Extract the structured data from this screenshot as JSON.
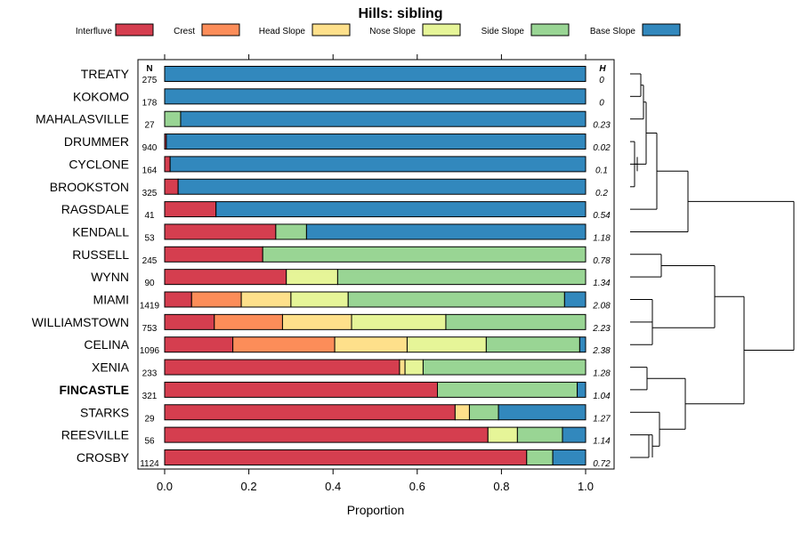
{
  "chart_data": {
    "type": "bar",
    "orientation": "horizontal",
    "stacked": true,
    "title": "Hills: sibling",
    "xlabel": "Proportion",
    "ylabel": "",
    "xlim": [
      0,
      1
    ],
    "x_ticks": [
      "0.0",
      "0.2",
      "0.4",
      "0.6",
      "0.8",
      "1.0"
    ],
    "n_header": "N",
    "h_header": "H",
    "legend": [
      {
        "name": "Interfluve",
        "color": "#d53e4f"
      },
      {
        "name": "Crest",
        "color": "#fc8d59"
      },
      {
        "name": "Head Slope",
        "color": "#fee08b"
      },
      {
        "name": "Nose Slope",
        "color": "#e6f598"
      },
      {
        "name": "Side Slope",
        "color": "#99d594"
      },
      {
        "name": "Base Slope",
        "color": "#3288bd"
      }
    ],
    "highlight": "FINCASTLE",
    "categories": [
      "TREATY",
      "KOKOMO",
      "MAHALASVILLE",
      "DRUMMER",
      "CYCLONE",
      "BROOKSTON",
      "RAGSDALE",
      "KENDALL",
      "RUSSELL",
      "WYNN",
      "MIAMI",
      "WILLIAMSTOWN",
      "CELINA",
      "XENIA",
      "FINCASTLE",
      "STARKS",
      "REESVILLE",
      "CROSBY"
    ],
    "n": [
      "275",
      "178",
      "27",
      "940",
      "164",
      "325",
      "41",
      "53",
      "245",
      "90",
      "1419",
      "753",
      "1096",
      "233",
      "321",
      "29",
      "56",
      "1124"
    ],
    "h": [
      "0",
      "0",
      "0.23",
      "0.02",
      "0.1",
      "0.2",
      "0.54",
      "1.18",
      "0.78",
      "1.34",
      "2.08",
      "2.23",
      "2.38",
      "1.28",
      "1.04",
      "1.27",
      "1.14",
      "0.72"
    ],
    "series": [
      {
        "name": "Interfluve",
        "values": [
          0,
          0,
          0,
          0.004,
          0.013,
          0.032,
          0.122,
          0.264,
          0.233,
          0.289,
          0.064,
          0.118,
          0.162,
          0.558,
          0.648,
          0.69,
          0.768,
          0.86
        ]
      },
      {
        "name": "Crest",
        "values": [
          0,
          0,
          0,
          0,
          0,
          0,
          0,
          0,
          0,
          0,
          0.118,
          0.162,
          0.242,
          0,
          0,
          0,
          0,
          0
        ]
      },
      {
        "name": "Head Slope",
        "values": [
          0,
          0,
          0,
          0,
          0,
          0,
          0,
          0,
          0,
          0,
          0.118,
          0.164,
          0.172,
          0.013,
          0,
          0.034,
          0,
          0
        ]
      },
      {
        "name": "Nose Slope",
        "values": [
          0,
          0,
          0,
          0,
          0,
          0,
          0,
          0,
          0,
          0.122,
          0.136,
          0.224,
          0.188,
          0.043,
          0,
          0,
          0.07,
          0
        ]
      },
      {
        "name": "Side Slope",
        "values": [
          0,
          0,
          0.038,
          0,
          0,
          0,
          0,
          0.073,
          0.767,
          0.589,
          0.514,
          0.332,
          0.222,
          0.386,
          0.332,
          0.069,
          0.107,
          0.062
        ]
      },
      {
        "name": "Base Slope",
        "values": [
          1,
          1,
          0.962,
          0.996,
          0.987,
          0.968,
          0.878,
          0.663,
          0,
          0,
          0.05,
          0,
          0.014,
          0,
          0.02,
          0.207,
          0.055,
          0.078
        ]
      }
    ]
  }
}
